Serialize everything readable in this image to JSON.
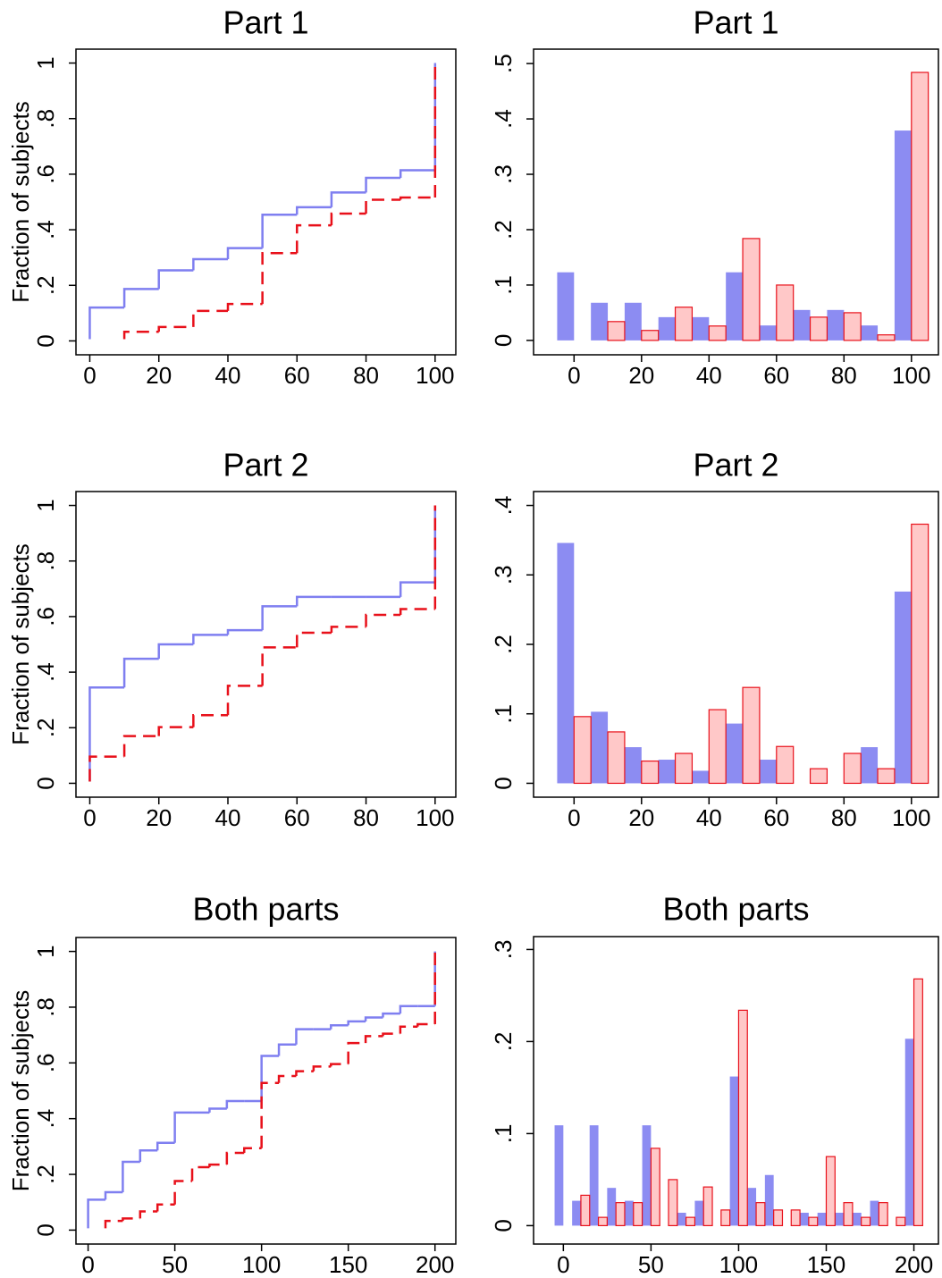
{
  "chart_data": [
    {
      "type": "step",
      "title": "Part 1",
      "y_label": "Fraction of subjects",
      "x": [
        0,
        10,
        20,
        30,
        40,
        50,
        60,
        70,
        80,
        90,
        100
      ],
      "series": [
        {
          "color": "#7f7ff0",
          "values": [
            0.12,
            0.187,
            0.254,
            0.294,
            0.334,
            0.454,
            0.481,
            0.534,
            0.587,
            0.614,
            1
          ]
        },
        {
          "color": "#e8101a",
          "values": [
            null,
            0.033,
            0.05,
            0.108,
            0.133,
            0.316,
            0.416,
            0.458,
            0.508,
            0.516,
            1
          ]
        }
      ],
      "xlim": [
        -4,
        106
      ],
      "xticks": [
        0,
        20,
        40,
        60,
        80,
        100
      ],
      "ylim": [
        -0.05,
        1.05
      ],
      "yticks": [
        0,
        {
          "value": 0.2,
          "label": ".2"
        },
        {
          "value": 0.4,
          "label": ".4"
        },
        {
          "value": 0.6,
          "label": ".6"
        },
        {
          "value": 0.8,
          "label": ".8"
        },
        1
      ]
    },
    {
      "type": "bar",
      "title": "Part 1",
      "x": [
        0,
        10,
        20,
        30,
        40,
        50,
        60,
        70,
        80,
        90,
        100
      ],
      "series": [
        {
          "color": "#8c8cf2",
          "values": [
            0.123,
            0.068,
            0.068,
            0.042,
            0.042,
            0.123,
            0.027,
            0.055,
            0.055,
            0.027,
            0.379
          ]
        },
        {
          "color": "#ffc8c8",
          "values": [
            null,
            0.034,
            0.018,
            0.06,
            0.026,
            0.184,
            0.1,
            0.042,
            0.05,
            0.01,
            0.484
          ]
        }
      ],
      "xlim": [
        -12,
        108
      ],
      "xticks": [
        0,
        20,
        40,
        60,
        80,
        100
      ],
      "ylim": [
        -0.026,
        0.526
      ],
      "yticks": [
        0,
        {
          "value": 0.1,
          "label": ".1"
        },
        {
          "value": 0.2,
          "label": ".2"
        },
        {
          "value": 0.3,
          "label": ".3"
        },
        {
          "value": 0.4,
          "label": ".4"
        },
        {
          "value": 0.5,
          "label": ".5"
        }
      ]
    },
    {
      "type": "step",
      "title": "Part 2",
      "y_label": "Fraction of subjects",
      "x": [
        0,
        10,
        20,
        30,
        40,
        50,
        60,
        70,
        80,
        90,
        100
      ],
      "series": [
        {
          "color": "#7f7ff0",
          "values": [
            0.345,
            0.448,
            0.5,
            0.534,
            0.551,
            0.637,
            0.671,
            0.671,
            0.671,
            0.723,
            1
          ]
        },
        {
          "color": "#e8101a",
          "values": [
            0.096,
            0.17,
            0.202,
            0.245,
            0.351,
            0.489,
            0.542,
            0.563,
            0.606,
            0.627,
            1
          ]
        }
      ],
      "xlim": [
        -4,
        106
      ],
      "xticks": [
        0,
        20,
        40,
        60,
        80,
        100
      ],
      "ylim": [
        -0.05,
        1.05
      ],
      "yticks": [
        0,
        {
          "value": 0.2,
          "label": ".2"
        },
        {
          "value": 0.4,
          "label": ".4"
        },
        {
          "value": 0.6,
          "label": ".6"
        },
        {
          "value": 0.8,
          "label": ".8"
        },
        1
      ]
    },
    {
      "type": "bar",
      "title": "Part 2",
      "x": [
        0,
        10,
        20,
        30,
        40,
        50,
        60,
        70,
        80,
        90,
        100
      ],
      "series": [
        {
          "color": "#8c8cf2",
          "values": [
            0.346,
            0.103,
            0.052,
            0.034,
            0.018,
            0.086,
            0.034,
            null,
            null,
            0.052,
            0.276
          ]
        },
        {
          "color": "#ffc8c8",
          "values": [
            0.096,
            0.074,
            0.032,
            0.043,
            0.106,
            0.138,
            0.053,
            0.021,
            0.043,
            0.021,
            0.373
          ]
        }
      ],
      "xlim": [
        -12,
        108
      ],
      "xticks": [
        0,
        20,
        40,
        60,
        80,
        100
      ],
      "ylim": [
        -0.02,
        0.42
      ],
      "yticks": [
        0,
        {
          "value": 0.1,
          "label": ".1"
        },
        {
          "value": 0.2,
          "label": ".2"
        },
        {
          "value": 0.3,
          "label": ".3"
        },
        {
          "value": 0.4,
          "label": ".4"
        }
      ]
    },
    {
      "type": "step",
      "title": "Both parts",
      "y_label": "Fraction of subjects",
      "x": [
        0,
        10,
        20,
        30,
        40,
        50,
        60,
        70,
        80,
        90,
        100,
        110,
        120,
        130,
        140,
        150,
        160,
        170,
        180,
        190,
        200
      ],
      "series": [
        {
          "color": "#7f7ff0",
          "values": [
            0.109,
            0.136,
            0.245,
            0.286,
            0.313,
            0.422,
            0.422,
            0.436,
            0.463,
            0.463,
            0.625,
            0.666,
            0.721,
            0.721,
            0.735,
            0.749,
            0.763,
            0.777,
            0.804,
            0.804,
            1
          ]
        },
        {
          "color": "#e8101a",
          "values": [
            null,
            0.033,
            0.042,
            0.067,
            0.092,
            0.176,
            0.226,
            0.235,
            0.277,
            0.294,
            0.528,
            0.553,
            0.57,
            0.587,
            0.596,
            0.671,
            0.696,
            0.705,
            0.73,
            0.739,
            1
          ]
        }
      ],
      "xlim": [
        -7,
        212
      ],
      "xticks": [
        0,
        50,
        100,
        150,
        200
      ],
      "ylim": [
        -0.05,
        1.05
      ],
      "yticks": [
        0,
        {
          "value": 0.2,
          "label": ".2"
        },
        {
          "value": 0.4,
          "label": ".4"
        },
        {
          "value": 0.6,
          "label": ".6"
        },
        {
          "value": 0.8,
          "label": ".8"
        },
        1
      ]
    },
    {
      "type": "bar",
      "title": "Both parts",
      "x": [
        0,
        10,
        20,
        30,
        40,
        50,
        60,
        70,
        80,
        90,
        100,
        110,
        120,
        130,
        140,
        150,
        160,
        170,
        180,
        190,
        200
      ],
      "series": [
        {
          "color": "#8c8cf2",
          "values": [
            0.109,
            0.027,
            0.109,
            0.041,
            0.027,
            0.109,
            null,
            0.014,
            0.027,
            null,
            0.162,
            0.041,
            0.055,
            null,
            0.014,
            0.014,
            0.014,
            0.014,
            0.027,
            null,
            0.203
          ]
        },
        {
          "color": "#ffc8c8",
          "values": [
            null,
            0.033,
            0.009,
            0.025,
            0.025,
            0.084,
            0.05,
            0.009,
            0.042,
            0.017,
            0.234,
            0.025,
            0.017,
            0.017,
            0.009,
            0.075,
            0.025,
            0.009,
            0.025,
            0.009,
            0.268
          ]
        }
      ],
      "xlim": [
        -17,
        214
      ],
      "xticks": [
        0,
        50,
        100,
        150,
        200
      ],
      "ylim": [
        -0.02,
        0.314
      ],
      "yticks": [
        0,
        {
          "value": 0.1,
          "label": ".1"
        },
        {
          "value": 0.2,
          "label": ".2"
        },
        {
          "value": 0.3,
          "label": ".3"
        }
      ]
    }
  ]
}
